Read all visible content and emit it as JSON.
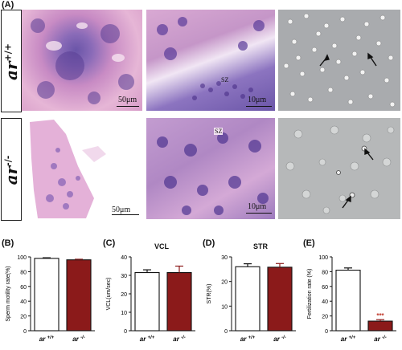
{
  "figure": {
    "panel_A": "(A)",
    "row_wt": {
      "genotype": "ar",
      "sup": "+/+"
    },
    "row_ko": {
      "genotype": "ar",
      "sup": "-/-"
    },
    "scale_wt_low": "50μm",
    "scale_wt_high": "10μm",
    "scale_ko_low": "50μm",
    "scale_ko_high": "10μm",
    "sz_wt": "SZ",
    "sz_ko": "SZ"
  },
  "chart_data": [
    {
      "type": "bar",
      "panel": "(B)",
      "title": "",
      "ylabel": "Sperm motility rate(%)",
      "categories": [
        "ar +/+",
        "ar -/-"
      ],
      "values": [
        98,
        96
      ],
      "errors": [
        0.8,
        0.8
      ],
      "colors": [
        "#ffffff",
        "#8b1a1a"
      ],
      "ylim": [
        0,
        100
      ],
      "yticks": [
        0,
        20,
        40,
        60,
        80,
        100
      ],
      "significance": [
        "",
        ""
      ]
    },
    {
      "type": "bar",
      "panel": "(C)",
      "title": "VCL",
      "ylabel": "VCL(um/sec)",
      "categories": [
        "ar +/+",
        "ar -/-"
      ],
      "values": [
        31.5,
        31.5
      ],
      "errors": [
        1.5,
        3.5
      ],
      "colors": [
        "#ffffff",
        "#8b1a1a"
      ],
      "ylim": [
        0,
        40
      ],
      "yticks": [
        0,
        10,
        20,
        30,
        40
      ],
      "significance": [
        "",
        ""
      ]
    },
    {
      "type": "bar",
      "panel": "(D)",
      "title": "STR",
      "ylabel": "STR(%)",
      "categories": [
        "ar +/+",
        "ar -/-"
      ],
      "values": [
        26,
        25.8
      ],
      "errors": [
        1.2,
        1.5
      ],
      "colors": [
        "#ffffff",
        "#8b1a1a"
      ],
      "ylim": [
        0,
        30
      ],
      "yticks": [
        0,
        10,
        20,
        30
      ],
      "significance": [
        "",
        ""
      ]
    },
    {
      "type": "bar",
      "panel": "(E)",
      "title": "",
      "ylabel": "Fertilization rate (%)",
      "categories": [
        "ar +/+",
        "ar -/-"
      ],
      "values": [
        82,
        13
      ],
      "errors": [
        3,
        2
      ],
      "colors": [
        "#ffffff",
        "#8b1a1a"
      ],
      "ylim": [
        0,
        100
      ],
      "yticks": [
        0,
        20,
        40,
        60,
        80,
        100
      ],
      "significance": [
        "",
        "***"
      ]
    }
  ]
}
